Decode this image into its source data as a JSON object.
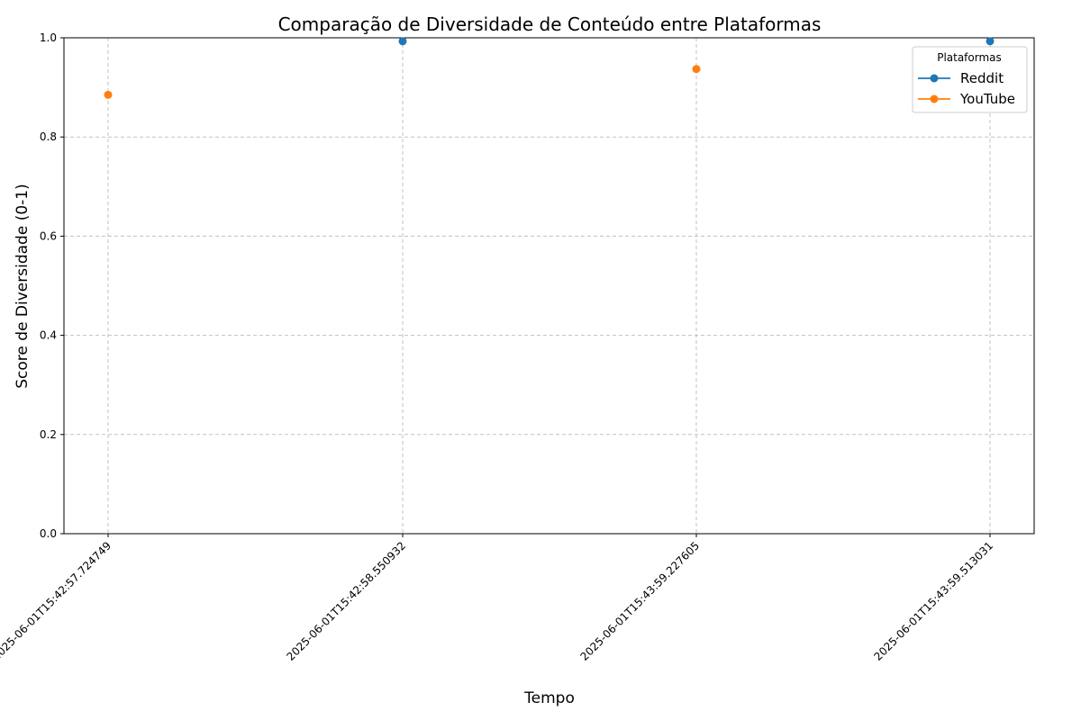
{
  "chart_data": {
    "type": "line",
    "title": "Comparação de Diversidade de Conteúdo entre Plataformas",
    "xlabel": "Tempo",
    "ylabel": "Score de Diversidade (0-1)",
    "categories": [
      "2025-06-01T15:42:57.724749",
      "2025-06-01T15:42:58.550932",
      "2025-06-01T15:43:59.227605",
      "2025-06-01T15:43:59.513031"
    ],
    "ylim": [
      0,
      1
    ],
    "yticks": [
      "0.0",
      "0.2",
      "0.4",
      "0.6",
      "0.8",
      "1.0"
    ],
    "grid": true,
    "legend": {
      "title": "Plataformas",
      "position": "top-right"
    },
    "series": [
      {
        "name": "Reddit",
        "color": "#1f77b4",
        "marker": "circle",
        "values": [
          null,
          0.993,
          null,
          0.993
        ]
      },
      {
        "name": "YouTube",
        "color": "#ff7f0e",
        "marker": "circle",
        "values": [
          0.885,
          null,
          0.937,
          null
        ]
      }
    ]
  }
}
